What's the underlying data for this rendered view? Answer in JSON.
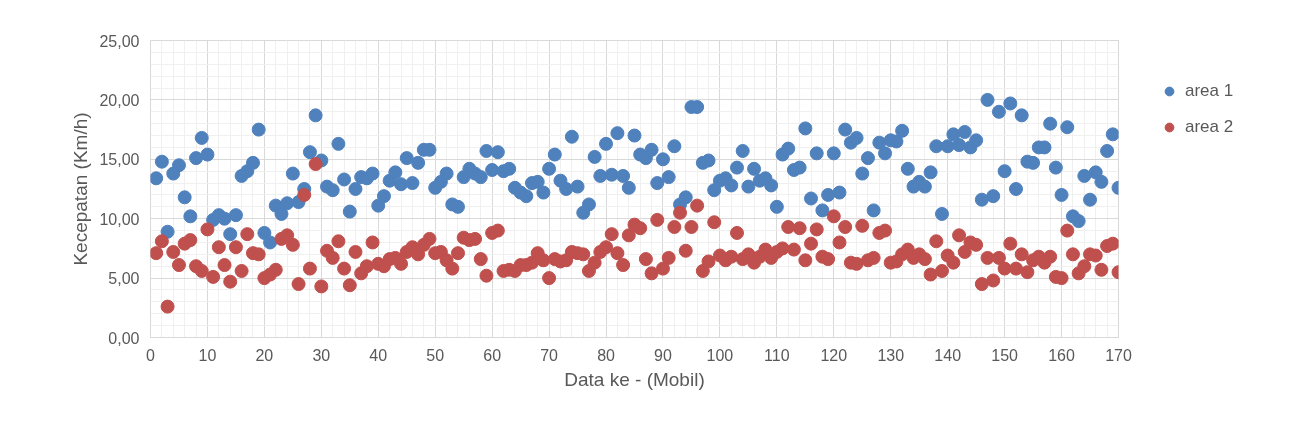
{
  "chart_data": {
    "type": "scatter",
    "xlabel": "Data ke - (Mobil)",
    "ylabel": "Kecepatan (Km/h)",
    "x": [
      1,
      2,
      3,
      4,
      5,
      6,
      7,
      8,
      9,
      10,
      11,
      12,
      13,
      14,
      15,
      16,
      17,
      18,
      19,
      20,
      21,
      22,
      23,
      24,
      25,
      26,
      27,
      28,
      29,
      30,
      31,
      32,
      33,
      34,
      35,
      36,
      37,
      38,
      39,
      40,
      41,
      42,
      43,
      44,
      45,
      46,
      47,
      48,
      49,
      50,
      51,
      52,
      53,
      54,
      55,
      56,
      57,
      58,
      59,
      60,
      61,
      62,
      63,
      64,
      65,
      66,
      67,
      68,
      69,
      70,
      71,
      72,
      73,
      74,
      75,
      76,
      77,
      78,
      79,
      80,
      81,
      82,
      83,
      84,
      85,
      86,
      87,
      88,
      89,
      90,
      91,
      92,
      93,
      94,
      95,
      96,
      97,
      98,
      99,
      100,
      101,
      102,
      103,
      104,
      105,
      106,
      107,
      108,
      109,
      110,
      111,
      112,
      113,
      114,
      115,
      116,
      117,
      118,
      119,
      120,
      121,
      122,
      123,
      124,
      125,
      126,
      127,
      128,
      129,
      130,
      131,
      132,
      133,
      134,
      135,
      136,
      137,
      138,
      139,
      140,
      141,
      142,
      143,
      144,
      145,
      146,
      147,
      148,
      149,
      150,
      151,
      152,
      153,
      154,
      155,
      156,
      157,
      158,
      159,
      160,
      161,
      162,
      163,
      164,
      165,
      166,
      167,
      168,
      169,
      170
    ],
    "series": [
      {
        "name": "area 1",
        "color": "#4f81bd",
        "values": [
          13.4,
          14.8,
          8.9,
          13.8,
          14.5,
          11.8,
          10.2,
          15.1,
          16.8,
          15.4,
          9.9,
          10.3,
          10.0,
          8.7,
          10.3,
          13.6,
          14.0,
          14.7,
          17.5,
          8.8,
          8.0,
          11.1,
          10.4,
          11.3,
          13.8,
          11.4,
          12.5,
          15.6,
          18.7,
          14.9,
          12.7,
          12.4,
          16.3,
          13.3,
          10.6,
          12.5,
          13.5,
          13.4,
          13.8,
          11.1,
          11.9,
          13.2,
          13.9,
          12.9,
          15.1,
          13.0,
          14.7,
          15.8,
          15.8,
          12.6,
          13.1,
          13.8,
          11.2,
          11.0,
          13.5,
          14.2,
          13.8,
          13.5,
          15.7,
          14.1,
          15.6,
          14.0,
          14.2,
          12.6,
          12.2,
          11.9,
          13.0,
          13.1,
          12.2,
          14.2,
          15.4,
          13.2,
          12.5,
          16.9,
          12.7,
          10.5,
          11.2,
          15.2,
          13.6,
          16.3,
          13.7,
          17.2,
          13.6,
          12.6,
          17.0,
          15.4,
          15.1,
          15.8,
          13.0,
          15.0,
          13.5,
          16.1,
          11.2,
          11.8,
          19.4,
          19.4,
          14.7,
          14.9,
          12.4,
          13.2,
          13.4,
          12.8,
          14.3,
          15.7,
          12.7,
          14.2,
          13.2,
          13.4,
          12.8,
          11.0,
          15.4,
          15.9,
          14.1,
          14.3,
          17.6,
          11.7,
          15.5,
          10.7,
          12.0,
          15.5,
          12.2,
          17.5,
          16.4,
          16.8,
          13.8,
          15.1,
          10.7,
          16.4,
          15.5,
          16.6,
          16.5,
          17.4,
          14.2,
          12.7,
          13.1,
          12.7,
          13.9,
          16.1,
          10.4,
          16.1,
          17.1,
          16.2,
          17.3,
          16.0,
          16.6,
          11.6,
          20.0,
          11.9,
          19.0,
          14.0,
          19.7,
          12.5,
          18.7,
          14.8,
          14.7,
          16.0,
          16.0,
          18.0,
          14.3,
          12.0,
          17.7,
          10.2,
          9.8,
          13.6,
          11.6,
          13.9,
          13.1,
          15.7,
          17.1,
          12.6
        ]
      },
      {
        "name": "area 2",
        "color": "#c0504d",
        "values": [
          7.1,
          8.1,
          2.6,
          7.2,
          6.1,
          7.9,
          8.2,
          6.0,
          5.6,
          9.1,
          5.1,
          7.6,
          6.1,
          4.7,
          7.6,
          5.6,
          8.7,
          7.1,
          7.0,
          5.0,
          5.3,
          5.7,
          8.3,
          8.6,
          7.8,
          4.5,
          12.0,
          5.8,
          14.6,
          4.3,
          7.3,
          6.7,
          8.1,
          5.8,
          4.4,
          7.2,
          5.4,
          6.0,
          8.0,
          6.2,
          6.0,
          6.6,
          6.7,
          6.2,
          7.2,
          7.6,
          7.0,
          7.8,
          8.3,
          7.1,
          7.2,
          6.5,
          5.8,
          7.1,
          8.4,
          8.2,
          8.3,
          6.6,
          5.2,
          8.8,
          9.0,
          5.6,
          5.7,
          5.6,
          6.1,
          6.1,
          6.3,
          7.1,
          6.5,
          5.0,
          6.6,
          6.4,
          6.5,
          7.2,
          7.1,
          7.0,
          5.6,
          6.3,
          7.2,
          7.6,
          8.7,
          7.1,
          6.1,
          8.6,
          9.5,
          9.2,
          6.6,
          5.4,
          9.9,
          5.8,
          6.7,
          9.3,
          10.5,
          7.3,
          9.3,
          11.1,
          5.6,
          6.4,
          9.7,
          6.9,
          6.5,
          6.8,
          8.8,
          6.6,
          7.0,
          6.3,
          6.8,
          7.4,
          6.7,
          7.2,
          7.5,
          9.3,
          7.4,
          9.2,
          6.5,
          7.9,
          9.1,
          6.8,
          6.6,
          10.2,
          8.0,
          9.3,
          6.3,
          6.2,
          9.4,
          6.5,
          6.7,
          8.8,
          9.0,
          6.3,
          6.4,
          7.0,
          7.4,
          6.7,
          7.0,
          6.6,
          5.3,
          8.1,
          5.6,
          6.9,
          6.3,
          8.6,
          7.2,
          8.0,
          7.8,
          4.5,
          6.7,
          4.8,
          6.7,
          5.8,
          7.9,
          5.8,
          7.0,
          5.5,
          6.5,
          6.8,
          6.3,
          6.8,
          5.1,
          5.0,
          9.0,
          7.0,
          5.4,
          6.0,
          7.0,
          6.9,
          5.7,
          7.7,
          7.9,
          5.5
        ]
      }
    ],
    "xlim": [
      0,
      170
    ],
    "xticks": [
      0,
      10,
      20,
      30,
      40,
      50,
      60,
      70,
      80,
      90,
      100,
      110,
      120,
      130,
      140,
      150,
      160,
      170
    ],
    "ylim": [
      0,
      25
    ],
    "yticks": [
      {
        "value": 0,
        "label": "0,00"
      },
      {
        "value": 5,
        "label": "5,00"
      },
      {
        "value": 10,
        "label": "10,00"
      },
      {
        "value": 15,
        "label": "15,00"
      },
      {
        "value": 20,
        "label": "20,00"
      },
      {
        "value": 25,
        "label": "25,00"
      }
    ],
    "grid": true,
    "legend": "right",
    "marker": "circle"
  }
}
